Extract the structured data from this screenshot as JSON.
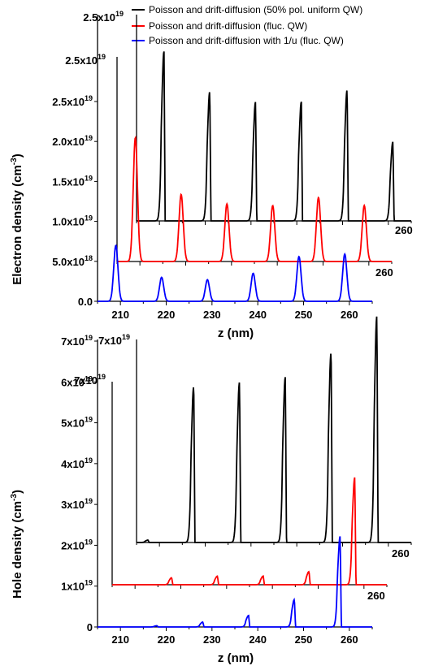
{
  "legend": [
    {
      "label": "Poisson and drift-diffusion (50% pol. uniform QW)",
      "color": "#000000"
    },
    {
      "label": "Poisson and drift-diffusion (fluc. QW)",
      "color": "#ff0000"
    },
    {
      "label": "Poisson and drift-diffusion with 1/u (fluc. QW)",
      "color": "#0000ff"
    }
  ],
  "chart_data": [
    {
      "type": "line",
      "ylabel_main": "Electron density (cm",
      "ylabel_sup": "-3",
      "ylabel_tail": ")",
      "xlabel": "z (nm)",
      "xlim": [
        205,
        265
      ],
      "xticks": [
        "210",
        "220",
        "230",
        "240",
        "250",
        "260"
      ],
      "yticks_front": [
        {
          "value": 0,
          "label": "0.0"
        },
        {
          "value": 5e+18,
          "label": "5.0x10",
          "exp": "18"
        },
        {
          "value": 1e+19,
          "label": "1.0x10",
          "exp": "19"
        },
        {
          "value": 1.5e+19,
          "label": "1.5x10",
          "exp": "19"
        },
        {
          "value": 2e+19,
          "label": "2.0x10",
          "exp": "19"
        },
        {
          "value": 2.5e+19,
          "label": "2.5x10",
          "exp": "19"
        }
      ],
      "offset_axes_labels": [
        {
          "series": 1,
          "label": "2.5x10",
          "exp": "19",
          "xlabel": "260"
        },
        {
          "series": 0,
          "label": "2.5x10",
          "exp": "19",
          "xlabel": "260"
        }
      ],
      "series": [
        {
          "name": "Poisson and drift-diffusion with 1/u (fluc. QW)",
          "color": "#0000ff",
          "shape": "gauss",
          "peaks": [
            {
              "x": 209,
              "y": 7e+18
            },
            {
              "x": 219,
              "y": 3e+18
            },
            {
              "x": 229,
              "y": 2.7e+18
            },
            {
              "x": 239,
              "y": 3.5e+18
            },
            {
              "x": 249,
              "y": 5.6e+18
            },
            {
              "x": 259,
              "y": 5.9e+18
            }
          ]
        },
        {
          "name": "Poisson and drift-diffusion (fluc. QW)",
          "color": "#ff0000",
          "shape": "gauss",
          "peaks": [
            {
              "x": 209,
              "y": 1.55e+19
            },
            {
              "x": 219,
              "y": 8.4e+18
            },
            {
              "x": 229,
              "y": 7.2e+18
            },
            {
              "x": 239,
              "y": 7e+18
            },
            {
              "x": 249,
              "y": 8e+18
            },
            {
              "x": 259,
              "y": 7e+18
            }
          ]
        },
        {
          "name": "Poisson and drift-diffusion (50% pol. uniform QW)",
          "color": "#000000",
          "shape": "spike",
          "peaks": [
            {
              "x": 211,
              "y": 2.12e+19
            },
            {
              "x": 221,
              "y": 1.62e+19
            },
            {
              "x": 231,
              "y": 1.49e+19
            },
            {
              "x": 241,
              "y": 1.49e+19
            },
            {
              "x": 251,
              "y": 1.64e+19
            },
            {
              "x": 261,
              "y": 9.9e+18
            }
          ]
        }
      ]
    },
    {
      "type": "line",
      "ylabel_main": "Hole density (cm",
      "ylabel_sup": "-3",
      "ylabel_tail": ")",
      "xlabel": "z (nm)",
      "xlim": [
        205,
        265
      ],
      "xticks": [
        "210",
        "220",
        "230",
        "240",
        "250",
        "260"
      ],
      "yticks_front": [
        {
          "value": 0,
          "label": "0"
        },
        {
          "value": 1e+19,
          "label": "1x10",
          "exp": "19"
        },
        {
          "value": 2e+19,
          "label": "2x10",
          "exp": "19"
        },
        {
          "value": 3e+19,
          "label": "3x10",
          "exp": "19"
        },
        {
          "value": 4e+19,
          "label": "4x10",
          "exp": "19"
        },
        {
          "value": 5e+19,
          "label": "5x10",
          "exp": "19"
        },
        {
          "value": 6e+19,
          "label": "6x10",
          "exp": "19"
        },
        {
          "value": 7e+19,
          "label": "7x10",
          "exp": "19"
        }
      ],
      "offset_axes_labels": [
        {
          "series": 1,
          "label": "7x10",
          "exp": "19",
          "xlabel": "260"
        },
        {
          "series": 0,
          "label": "7x10",
          "exp": "19",
          "xlabel": "260"
        }
      ],
      "series": [
        {
          "name": "Poisson and drift-diffusion with 1/u (fluc. QW)",
          "color": "#0000ff",
          "shape": "spike",
          "peaks": [
            {
              "x": 218,
              "y": 3e+17
            },
            {
              "x": 228,
              "y": 1.2e+18
            },
            {
              "x": 238,
              "y": 2.8e+18
            },
            {
              "x": 248,
              "y": 6.7e+18
            },
            {
              "x": 258,
              "y": 2.22e+19
            }
          ]
        },
        {
          "name": "Poisson and drift-diffusion (fluc. QW)",
          "color": "#ff0000",
          "shape": "spike",
          "peaks": [
            {
              "x": 218,
              "y": 1.7e+18
            },
            {
              "x": 228,
              "y": 2.1e+18
            },
            {
              "x": 238,
              "y": 2.1e+18
            },
            {
              "x": 248,
              "y": 3.2e+18
            },
            {
              "x": 258,
              "y": 2.63e+19
            }
          ]
        },
        {
          "name": "Poisson and drift-diffusion (50% pol. uniform QW)",
          "color": "#000000",
          "shape": "spike",
          "peaks": [
            {
              "x": 207.5,
              "y": 6e+17
            },
            {
              "x": 217.5,
              "y": 3.83e+19
            },
            {
              "x": 227.5,
              "y": 3.93e+19
            },
            {
              "x": 237.5,
              "y": 4.05e+19
            },
            {
              "x": 247.5,
              "y": 4.66e+19
            },
            {
              "x": 257.5,
              "y": 5.55e+19
            }
          ]
        }
      ]
    }
  ]
}
